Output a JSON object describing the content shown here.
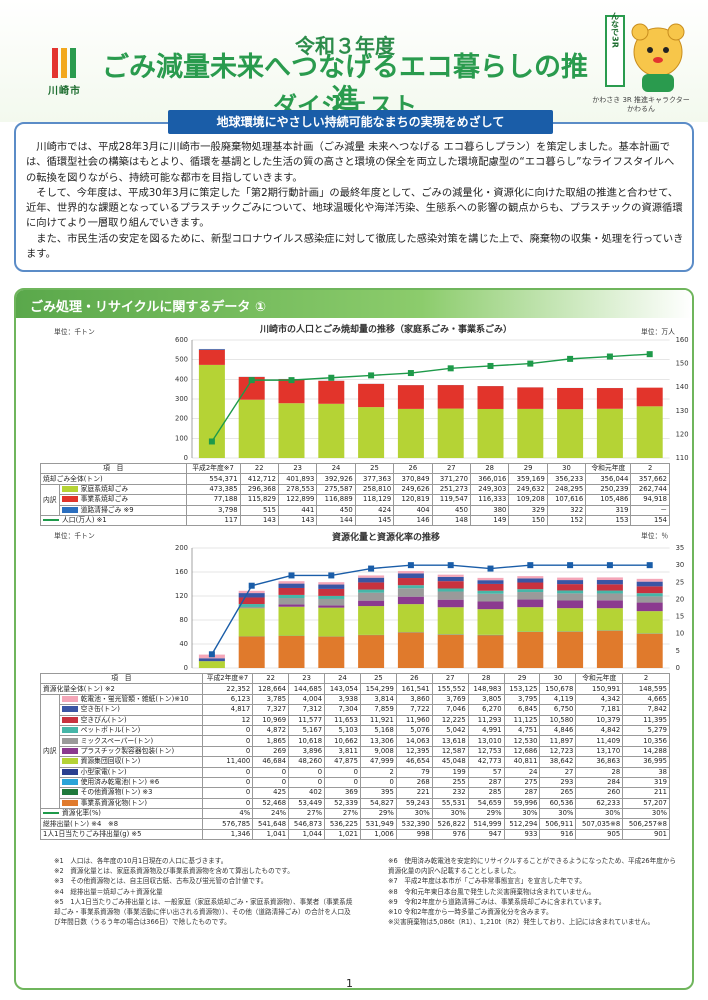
{
  "header": {
    "city": "川崎市",
    "title_line1": "令和３年度",
    "title_line2": "ごみ減量未来へつなげるエコ暮らしの推進",
    "title_line3": "ダイジェスト",
    "mascot_badge": "みんなで3R",
    "mascot_caption1": "かわさき 3R 推進キャラクター",
    "mascot_caption2": "かわるん"
  },
  "intro": {
    "banner": "地球環境にやさしい持続可能なまちの実現をめざして",
    "p1": "川崎市では、平成28年3月に川崎市一般廃棄物処理基本計画（ごみ減量 未来へつなげる エコ暮らしプラン）を策定しました。基本計画では、循環型社会の構築はもとより、循環を基調とした生活の質の高さと環境の保全を両立した環境配慮型の“エコ暮らし”なライフスタイルへの転換を図りながら、持続可能な都市を目指していきます。",
    "p2": "そして、今年度は、平成30年3月に策定した「第2期行動計画」の最終年度として、ごみの減量化・資源化に向けた取組の推進と合わせて、近年、世界的な課題となっているプラスチックごみについて、地球温暖化や海洋汚染、生態系への影響の観点からも、プラスチックの資源循環に向けてより一層取り組んでいきます。",
    "p3": "また、市民生活の安定を図るために、新型コロナウイルス感染症に対して徹底した感染対策を講じた上で、廃棄物の収集・処理を行っていきます。"
  },
  "section_title": "ごみ処理・リサイクルに関するデータ ①",
  "chart1": {
    "title": "川崎市の人口とごみ焼却量の推移（家庭系ごみ・事業系ごみ）",
    "unit_left": "単位：千トン",
    "unit_right": "単位：万人",
    "yticks_left": [
      "600",
      "500",
      "400",
      "300",
      "200",
      "100",
      "0"
    ],
    "yticks_right": [
      "160",
      "150",
      "140",
      "130",
      "120",
      "110"
    ]
  },
  "chart2": {
    "title": "資源化量と資源化率の推移",
    "unit_left": "単位：千トン",
    "unit_right": "単位：％",
    "yticks_left": [
      "200",
      "160",
      "120",
      "80",
      "40",
      "0"
    ],
    "yticks_right": [
      "35",
      "30",
      "25",
      "20",
      "15",
      "10",
      "5",
      "0"
    ]
  },
  "chart_data": [
    {
      "type": "bar",
      "title": "川崎市の人口とごみ焼却量の推移（家庭系ごみ・事業系ごみ）",
      "ylabel": "千トン",
      "ylim": [
        0,
        600
      ],
      "y2lim": [
        110,
        160
      ],
      "categories": [
        "平成2年度",
        "22",
        "23",
        "24",
        "25",
        "26",
        "27",
        "28",
        "29",
        "30",
        "令和元年度",
        "2"
      ],
      "series": [
        {
          "name": "家庭系焼却ごみ",
          "color": "#b5d335",
          "values": [
            473.385,
            296.368,
            278.553,
            275.587,
            258.81,
            249.626,
            251.273,
            249.303,
            249.632,
            248.295,
            250.239,
            262.744
          ]
        },
        {
          "name": "事業系焼却ごみ",
          "color": "#e2342b",
          "values": [
            77.188,
            115.829,
            122.899,
            116.889,
            118.129,
            120.819,
            119.547,
            116.333,
            109.208,
            107.616,
            105.486,
            94.918
          ]
        },
        {
          "name": "道路清掃ごみ ※9",
          "color": "#2c6fbf",
          "values": [
            3.798,
            0.515,
            0.441,
            0.45,
            0.424,
            0.404,
            0.45,
            0.38,
            0.329,
            0.322,
            0.319,
            null
          ]
        },
        {
          "name": "人口(万人) ※1",
          "axis": "right",
          "color": "#1e9a4a",
          "values": [
            117,
            143,
            143,
            144,
            145,
            146,
            148,
            149,
            150,
            152,
            153,
            154
          ]
        }
      ]
    },
    {
      "type": "bar",
      "title": "資源化量と資源化率の推移",
      "ylabel": "千トン",
      "ylim": [
        0,
        200
      ],
      "y2lim": [
        0,
        35
      ],
      "categories": [
        "平成2年度",
        "22",
        "23",
        "24",
        "25",
        "26",
        "27",
        "28",
        "29",
        "30",
        "令和元年度",
        "2"
      ],
      "series": [
        {
          "name": "資源化量(トン)",
          "values": [
            22352,
            128664,
            144685,
            143054,
            154299,
            161541,
            155552,
            148983,
            153125,
            150678,
            150991,
            148595
          ]
        },
        {
          "name": "資源化率(%)",
          "axis": "right",
          "values": [
            4,
            24,
            27,
            27,
            29,
            30,
            30,
            29,
            30,
            30,
            30,
            30
          ]
        }
      ]
    }
  ],
  "table1": {
    "item": "項　目",
    "uchi": "内訳",
    "headers": [
      "平成2年度※7",
      "22",
      "23",
      "24",
      "25",
      "26",
      "27",
      "28",
      "29",
      "30",
      "令和元年度",
      "2"
    ],
    "rows": [
      {
        "label": "焼却ごみ全体(トン)",
        "color": "",
        "vals": [
          "554,371",
          "412,712",
          "401,893",
          "392,926",
          "377,363",
          "370,849",
          "371,270",
          "366,016",
          "359,169",
          "356,233",
          "356,044",
          "357,662"
        ]
      },
      {
        "label": "家庭系焼却ごみ",
        "color": "#b5d335",
        "vals": [
          "473,385",
          "296,368",
          "278,553",
          "275,587",
          "258,810",
          "249,626",
          "251,273",
          "249,303",
          "249,632",
          "248,295",
          "250,239",
          "262,744"
        ]
      },
      {
        "label": "事業系焼却ごみ",
        "color": "#e2342b",
        "vals": [
          "77,188",
          "115,829",
          "122,899",
          "116,889",
          "118,129",
          "120,819",
          "119,547",
          "116,333",
          "109,208",
          "107,616",
          "105,486",
          "94,918"
        ]
      },
      {
        "label": "道路清掃ごみ ※9",
        "color": "#2c6fbf",
        "vals": [
          "3,798",
          "515",
          "441",
          "450",
          "424",
          "404",
          "450",
          "380",
          "329",
          "322",
          "319",
          "－"
        ]
      },
      {
        "label": "人口(万人) ※1",
        "color": "line",
        "vals": [
          "117",
          "143",
          "143",
          "144",
          "145",
          "146",
          "148",
          "149",
          "150",
          "152",
          "153",
          "154"
        ]
      }
    ]
  },
  "table2": {
    "item": "項　目",
    "uchi": "内訳",
    "headers": [
      "平成2年度※7",
      "22",
      "23",
      "24",
      "25",
      "26",
      "27",
      "28",
      "29",
      "30",
      "令和元年度",
      "2"
    ],
    "rows": [
      {
        "label": "資源化量全体(トン) ※2",
        "color": "",
        "vals": [
          "22,352",
          "128,664",
          "144,685",
          "143,054",
          "154,299",
          "161,541",
          "155,552",
          "148,983",
          "153,125",
          "150,678",
          "150,991",
          "148,595"
        ]
      },
      {
        "label": "乾電池・蛍光管類・雑紙(トン)※10",
        "color": "#f4a6b8",
        "vals": [
          "6,123",
          "3,785",
          "4,004",
          "3,938",
          "3,814",
          "3,860",
          "3,769",
          "3,805",
          "3,795",
          "4,119",
          "4,342",
          "4,665"
        ]
      },
      {
        "label": "空き缶(トン)",
        "color": "#3a55a4",
        "vals": [
          "4,817",
          "7,327",
          "7,312",
          "7,304",
          "7,859",
          "7,722",
          "7,046",
          "6,270",
          "6,845",
          "6,750",
          "7,181",
          "7,842"
        ]
      },
      {
        "label": "空きびん(トン)",
        "color": "#c8323f",
        "vals": [
          "12",
          "10,969",
          "11,577",
          "11,653",
          "11,921",
          "11,960",
          "12,225",
          "11,293",
          "11,125",
          "10,580",
          "10,379",
          "11,395"
        ]
      },
      {
        "label": "ペットボトル(トン)",
        "color": "#46b6a8",
        "vals": [
          "0",
          "4,872",
          "5,167",
          "5,103",
          "5,168",
          "5,076",
          "5,042",
          "4,991",
          "4,751",
          "4,846",
          "4,842",
          "5,279"
        ]
      },
      {
        "label": "ミックスペーパー(トン)",
        "color": "#9a9a9a",
        "vals": [
          "0",
          "1,865",
          "10,618",
          "10,662",
          "13,306",
          "14,063",
          "13,618",
          "13,010",
          "12,530",
          "11,897",
          "11,409",
          "10,356"
        ]
      },
      {
        "label": "プラスチック製容器包装(トン)",
        "color": "#8b3a8f",
        "vals": [
          "0",
          "269",
          "3,896",
          "3,811",
          "9,008",
          "12,395",
          "12,587",
          "12,753",
          "12,686",
          "12,723",
          "13,170",
          "14,288"
        ]
      },
      {
        "label": "資源集団回収(トン)",
        "color": "#b5d335",
        "vals": [
          "11,400",
          "46,684",
          "48,260",
          "47,875",
          "47,999",
          "46,654",
          "45,048",
          "42,773",
          "40,811",
          "38,642",
          "36,863",
          "36,995"
        ]
      },
      {
        "label": "小型家電(トン)",
        "color": "#2a3f8f",
        "vals": [
          "0",
          "0",
          "0",
          "0",
          "2",
          "79",
          "199",
          "57",
          "24",
          "27",
          "28",
          "38"
        ]
      },
      {
        "label": "使用済み乾電池(トン) ※6",
        "color": "#2aa4d8",
        "vals": [
          "0",
          "0",
          "0",
          "0",
          "0",
          "268",
          "255",
          "287",
          "275",
          "293",
          "284",
          "319"
        ]
      },
      {
        "label": "その他資源物(トン) ※3",
        "color": "#1f7a3c",
        "vals": [
          "0",
          "425",
          "402",
          "369",
          "395",
          "221",
          "232",
          "285",
          "287",
          "265",
          "260",
          "211"
        ]
      },
      {
        "label": "事業系資源化物(トン)",
        "color": "#e07a2c",
        "vals": [
          "0",
          "52,468",
          "53,449",
          "52,339",
          "54,827",
          "59,243",
          "55,531",
          "54,659",
          "59,996",
          "60,536",
          "62,233",
          "57,207"
        ]
      },
      {
        "label": "資源化率(%)",
        "color": "line",
        "vals": [
          "4%",
          "24%",
          "27%",
          "27%",
          "29%",
          "30%",
          "30%",
          "29%",
          "30%",
          "30%",
          "30%",
          "30%"
        ]
      },
      {
        "label": "総排出量(トン) ※4　※8",
        "color": "",
        "vals": [
          "576,785",
          "541,648",
          "546,873",
          "536,225",
          "531,949",
          "532,390",
          "526,822",
          "514,999",
          "512,294",
          "506,911",
          "507,035※8",
          "506,257※8"
        ]
      },
      {
        "label": "1人1日当たりごみ排出量(g) ※5",
        "color": "",
        "vals": [
          "1,346",
          "1,041",
          "1,044",
          "1,021",
          "1,006",
          "998",
          "976",
          "947",
          "933",
          "916",
          "905",
          "901"
        ]
      }
    ]
  },
  "notes_left": [
    "※1　人口は、各年度の10月1日現在の人口に基づきます。",
    "※2　資源化量とは、家庭系資源物及び事業系資源物を含めて算出したものです。",
    "※3　その他資源物とは、自主回収古紙、古布及び蛍光管の合計値です。",
    "※4　総排出量＝焼却ごみ＋資源化量",
    "※5　1人1日当たりごみ排出量とは、一般家庭（家庭系焼却ごみ・家庭系資源物）、事業者（事業系焼却ごみ・事業系資源物（事業活動に伴い出される資源物））、その他（道路清掃ごみ）の合計を人口及び年間日数（うるう年の場合は366日）で除したものです。"
  ],
  "notes_right": [
    "※6　使用済み乾電池を安定的にリサイクルすることができるようになったため、平成26年度から資源化量の内訳へ記載することとしました。",
    "※7　平成2年度は本市が「ごみ非常事態宣言」を宣言した年です。",
    "※8　令和元年東日本台風で発生した災害廃棄物は含まれていません。",
    "※9　令和2年度から道路清掃ごみは、事業系焼却ごみに含まれています。",
    "※10 令和2年度から一時多量ごみ資源化分を含みます。",
    "※災害廃棄物は5,086t（R1）、1,210t（R2）発生しており、上記には含まれていません。"
  ],
  "page_number": "1"
}
